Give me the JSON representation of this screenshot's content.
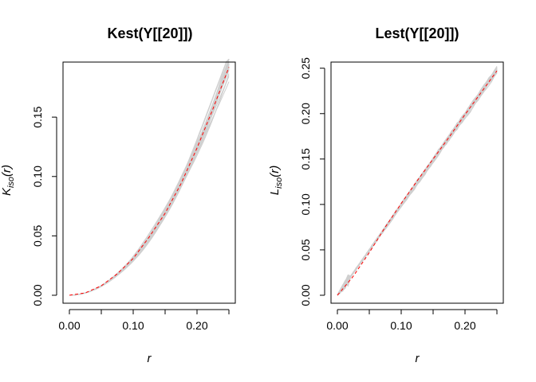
{
  "chart_data": [
    {
      "type": "line",
      "title": "Kest(Y[[20]])",
      "xlabel": "r",
      "ylabel_main": "K",
      "ylabel_sub": "iso",
      "ylabel_suffix": "(r)",
      "xlim": [
        0,
        0.25
      ],
      "ylim": [
        0,
        0.195
      ],
      "xticks": [
        0.0,
        0.1,
        0.2
      ],
      "xticks_minor": [
        0.05,
        0.15,
        0.25
      ],
      "yticks": [
        0.0,
        0.05,
        0.1,
        0.15
      ],
      "xtick_labels": [
        "0.00",
        "0.10",
        "0.20"
      ],
      "ytick_labels": [
        "0.00",
        "0.05",
        "0.10",
        "0.15"
      ],
      "model": "pi_r2",
      "envelope_count": 39,
      "series": [
        {
          "role": "observed",
          "color": "#ff0000",
          "x": [
            0,
            0.025,
            0.05,
            0.075,
            0.1,
            0.125,
            0.15,
            0.175,
            0.2,
            0.225,
            0.25
          ],
          "y": [
            0,
            0.002,
            0.008,
            0.018,
            0.031,
            0.049,
            0.069,
            0.094,
            0.124,
            0.157,
            0.192
          ]
        }
      ],
      "envelope_color": "#cfcfcf",
      "grid": false
    },
    {
      "type": "line",
      "title": "Lest(Y[[20]])",
      "xlabel": "r",
      "ylabel_main": "L",
      "ylabel_sub": "iso",
      "ylabel_suffix": "(r)",
      "xlim": [
        0,
        0.25
      ],
      "ylim": [
        0,
        0.255
      ],
      "xticks": [
        0.0,
        0.1,
        0.2
      ],
      "xticks_minor": [
        0.05,
        0.15,
        0.25
      ],
      "yticks": [
        0.0,
        0.05,
        0.1,
        0.15,
        0.2,
        0.25
      ],
      "xtick_labels": [
        "0.00",
        "0.10",
        "0.20"
      ],
      "ytick_labels": [
        "0.00",
        "0.05",
        "0.10",
        "0.15",
        "0.20",
        "0.25"
      ],
      "model": "identity",
      "envelope_count": 39,
      "series": [
        {
          "role": "observed",
          "color": "#ff0000",
          "x": [
            0,
            0.005,
            0.025,
            0.05,
            0.075,
            0.1,
            0.125,
            0.15,
            0.175,
            0.2,
            0.225,
            0.25
          ],
          "y": [
            0,
            0.004,
            0.021,
            0.047,
            0.075,
            0.101,
            0.126,
            0.15,
            0.174,
            0.199,
            0.223,
            0.247
          ]
        }
      ],
      "envelope_color": "#cfcfcf",
      "grid": false
    }
  ]
}
